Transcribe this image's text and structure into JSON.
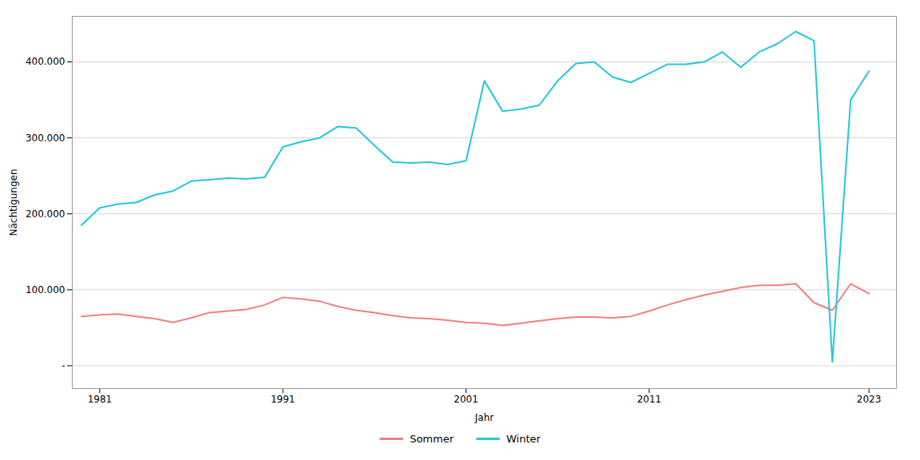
{
  "chart_data": {
    "type": "line",
    "xlabel": "Jahr",
    "ylabel": "Nächtigungen",
    "x": [
      1980,
      1981,
      1982,
      1983,
      1984,
      1985,
      1986,
      1987,
      1988,
      1989,
      1990,
      1991,
      1992,
      1993,
      1994,
      1995,
      1996,
      1997,
      1998,
      1999,
      2000,
      2001,
      2002,
      2003,
      2004,
      2005,
      2006,
      2007,
      2008,
      2009,
      2010,
      2011,
      2012,
      2013,
      2014,
      2015,
      2016,
      2017,
      2018,
      2019,
      2020,
      2021,
      2022,
      2023
    ],
    "series": [
      {
        "name": "Sommer",
        "color": "#F08080",
        "values": [
          65000,
          67000,
          68000,
          65000,
          62000,
          57000,
          63000,
          70000,
          72000,
          74000,
          80000,
          90000,
          88000,
          85000,
          78000,
          73000,
          70000,
          66000,
          63000,
          62000,
          60000,
          57000,
          56000,
          53000,
          56000,
          59000,
          62000,
          64000,
          64000,
          63000,
          65000,
          72000,
          80000,
          87000,
          93000,
          98000,
          103000,
          106000,
          106000,
          108000,
          83000,
          73000,
          108000,
          95000
        ]
      },
      {
        "name": "Winter",
        "color": "#26C6DA",
        "values": [
          185000,
          208000,
          213000,
          215000,
          225000,
          230000,
          243000,
          245000,
          247000,
          246000,
          248000,
          288000,
          295000,
          300000,
          315000,
          313000,
          290000,
          268000,
          267000,
          268000,
          265000,
          270000,
          375000,
          335000,
          338000,
          343000,
          375000,
          398000,
          400000,
          380000,
          373000,
          385000,
          397000,
          397000,
          400000,
          413000,
          393000,
          413000,
          424000,
          440000,
          428000,
          5000,
          350000,
          388000
        ]
      }
    ],
    "xlim": [
      1979.5,
      2024.5
    ],
    "xticks": [
      1981,
      1991,
      2001,
      2011,
      2023
    ],
    "ylim": [
      -30000,
      460000
    ],
    "yticks": [
      {
        "value": 0,
        "label": "-"
      },
      {
        "value": 100000,
        "label": "100.000"
      },
      {
        "value": 200000,
        "label": "200.000"
      },
      {
        "value": 300000,
        "label": "300.000"
      },
      {
        "value": 400000,
        "label": "400.000"
      }
    ],
    "grid": "y",
    "legend": "bottom"
  }
}
